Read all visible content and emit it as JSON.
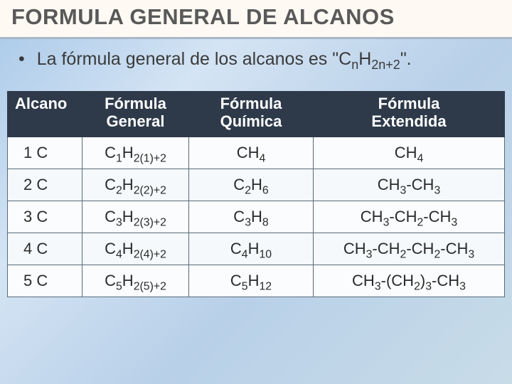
{
  "title": "FORMULA GENERAL DE ALCANOS",
  "bullet_prefix": "La fórmula general de los alcanos es \"C",
  "bullet_sub1": "n",
  "bullet_mid": "H",
  "bullet_sub2": "2n+2",
  "bullet_suffix": "\".",
  "headers": {
    "c0": "Alcano",
    "c1a": "Fórmula",
    "c1b": "General",
    "c2a": "Fórmula",
    "c2b": "Química",
    "c3a": "Fórmula",
    "c3b": "Extendida"
  },
  "rows": [
    {
      "alcano": "1 C",
      "gen_base1": "C",
      "gen_sub1": "1",
      "gen_base2": "H",
      "gen_sub2": "2(1)+2",
      "quim_b1": "CH",
      "quim_s1": "4",
      "quim_b2": "",
      "quim_s2": "",
      "ext_html": "CH<sub>4</sub>"
    },
    {
      "alcano": "2 C",
      "gen_base1": "C",
      "gen_sub1": "2",
      "gen_base2": "H",
      "gen_sub2": "2(2)+2",
      "quim_b1": "C",
      "quim_s1": "2",
      "quim_b2": "H",
      "quim_s2": "6",
      "ext_html": "CH<sub>3</sub>-CH<sub>3</sub>"
    },
    {
      "alcano": "3 C",
      "gen_base1": "C",
      "gen_sub1": "3",
      "gen_base2": "H",
      "gen_sub2": "2(3)+2",
      "quim_b1": "C",
      "quim_s1": "3",
      "quim_b2": "H",
      "quim_s2": "8",
      "ext_html": "CH<sub>3</sub>-CH<sub>2</sub>-CH<sub>3</sub>"
    },
    {
      "alcano": "4 C",
      "gen_base1": "C",
      "gen_sub1": "4",
      "gen_base2": "H",
      "gen_sub2": "2(4)+2",
      "quim_b1": "C",
      "quim_s1": "4",
      "quim_b2": "H",
      "quim_s2": "10",
      "ext_html": "CH<sub>3</sub>-CH<sub>2</sub>-CH<sub>2</sub>-CH<sub>3</sub>"
    },
    {
      "alcano": "5 C",
      "gen_base1": "C",
      "gen_sub1": "5",
      "gen_base2": "H",
      "gen_sub2": "2(5)+2",
      "quim_b1": "C",
      "quim_s1": "5",
      "quim_b2": "H",
      "quim_s2": "12",
      "ext_html": "CH<sub>3</sub>-(CH<sub>2</sub>)<sub>3</sub>-CH<sub>3</sub>"
    }
  ],
  "colors": {
    "title_bg": "#fef9f3",
    "title_color": "#595959",
    "header_bg": "#2e3a4a",
    "header_fg": "#ffffff",
    "cell_bg": "#fafcfd",
    "border": "#5a6a7a"
  }
}
